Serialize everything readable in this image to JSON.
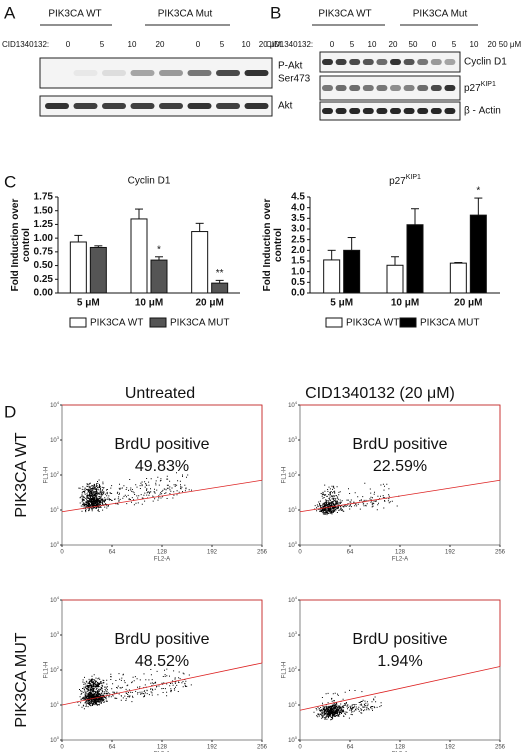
{
  "panel_labels": [
    "A",
    "B",
    "C",
    "D"
  ],
  "panel_a": {
    "groups": [
      "PIK3CA WT",
      "PIK3CA Mut"
    ],
    "dose_label": "CID1340132:",
    "doses": [
      "0",
      "5",
      "10",
      "20",
      "0",
      "5",
      "10",
      "20 μM"
    ],
    "blots": [
      [
        "P-Akt",
        "Ser473"
      ],
      [
        "Akt"
      ]
    ]
  },
  "panel_b": {
    "groups": [
      "PIK3CA WT",
      "PIK3CA Mut"
    ],
    "dose_label": "CID1340132:",
    "doses": [
      "0",
      "5",
      "10",
      "20",
      "50",
      "0",
      "5",
      "10",
      "20",
      "50 μM"
    ],
    "blots": [
      {
        "label": "Cyclin D1"
      },
      {
        "label": "p27",
        "sup": "KIP1"
      },
      {
        "label": "β - Actin"
      }
    ]
  },
  "chart_data": [
    {
      "type": "bar",
      "title": "Cyclin D1",
      "ylabel": [
        "Fold Induction over",
        "control"
      ],
      "categories": [
        "5 μM",
        "10 μM",
        "20 μM"
      ],
      "series": [
        {
          "name": "PIK3CA WT",
          "color": "#ffffff",
          "values": [
            0.93,
            1.35,
            1.12
          ],
          "errors": [
            0.12,
            0.18,
            0.15
          ]
        },
        {
          "name": "PIK3CA MUT",
          "color": "#555555",
          "values": [
            0.83,
            0.6,
            0.18
          ],
          "errors": [
            0.03,
            0.06,
            0.05
          ]
        }
      ],
      "annotations": [
        null,
        "*",
        "**"
      ],
      "ylim": [
        0,
        1.75
      ],
      "yticks": [
        {
          "value": 0,
          "label": "0.00"
        },
        0.25,
        {
          "value": 0.5,
          "label": "0.50"
        },
        0.75,
        {
          "value": 1,
          "label": "1.00"
        },
        1.25,
        {
          "value": 1.5,
          "label": "1.50"
        },
        1.75
      ]
    },
    {
      "type": "bar",
      "title": "p27",
      "title_sup": "KIP1",
      "ylabel": [
        "Fold Induction over",
        "control"
      ],
      "categories": [
        "5 μM",
        "10 μM",
        "20 μM"
      ],
      "series": [
        {
          "name": "PIK3CA WT",
          "color": "#ffffff",
          "values": [
            1.55,
            1.3,
            1.4
          ],
          "errors": [
            0.45,
            0.4,
            0.03
          ]
        },
        {
          "name": "PIK3CA MUT",
          "color": "#000000",
          "values": [
            2.0,
            3.2,
            3.65
          ],
          "errors": [
            0.6,
            0.75,
            0.8
          ]
        }
      ],
      "annotations": [
        null,
        null,
        "*"
      ],
      "ylim": [
        0,
        4.5
      ],
      "yticks": [
        {
          "value": 0,
          "label": "0.0"
        },
        0.5,
        {
          "value": 1,
          "label": "1.0"
        },
        1.5,
        {
          "value": 2,
          "label": "2.0"
        },
        2.5,
        {
          "value": 3,
          "label": "3.0"
        },
        3.5,
        {
          "value": 4,
          "label": "4.0"
        },
        4.5
      ]
    }
  ],
  "panel_d": {
    "columns": [
      "Untreated",
      "CID1340132 (20 μM)"
    ],
    "rows": [
      "PIK3CA WT",
      "PIK3CA MUT"
    ],
    "plots": [
      {
        "label": "BrdU positive",
        "percent": "49.83%"
      },
      {
        "label": "BrdU positive",
        "percent": "22.59%"
      },
      {
        "label": "BrdU positive",
        "percent": "48.52%"
      },
      {
        "label": "BrdU positive",
        "percent": "1.94%"
      }
    ],
    "x_label": "FL2-A",
    "y_label": "FL1-H",
    "xlim": [
      0,
      256
    ],
    "xticks": [
      0,
      64,
      128,
      192,
      256
    ],
    "ylim": [
      1,
      10000
    ],
    "yticks": [
      {
        "value": 1,
        "label": "10",
        "sup": "0"
      },
      {
        "value": 10,
        "label": "10",
        "sup": "1"
      },
      {
        "value": 100,
        "label": "10",
        "sup": "2"
      },
      {
        "value": 1000,
        "label": "10",
        "sup": "3"
      },
      {
        "value": 10000,
        "label": "10",
        "sup": "4"
      }
    ]
  }
}
